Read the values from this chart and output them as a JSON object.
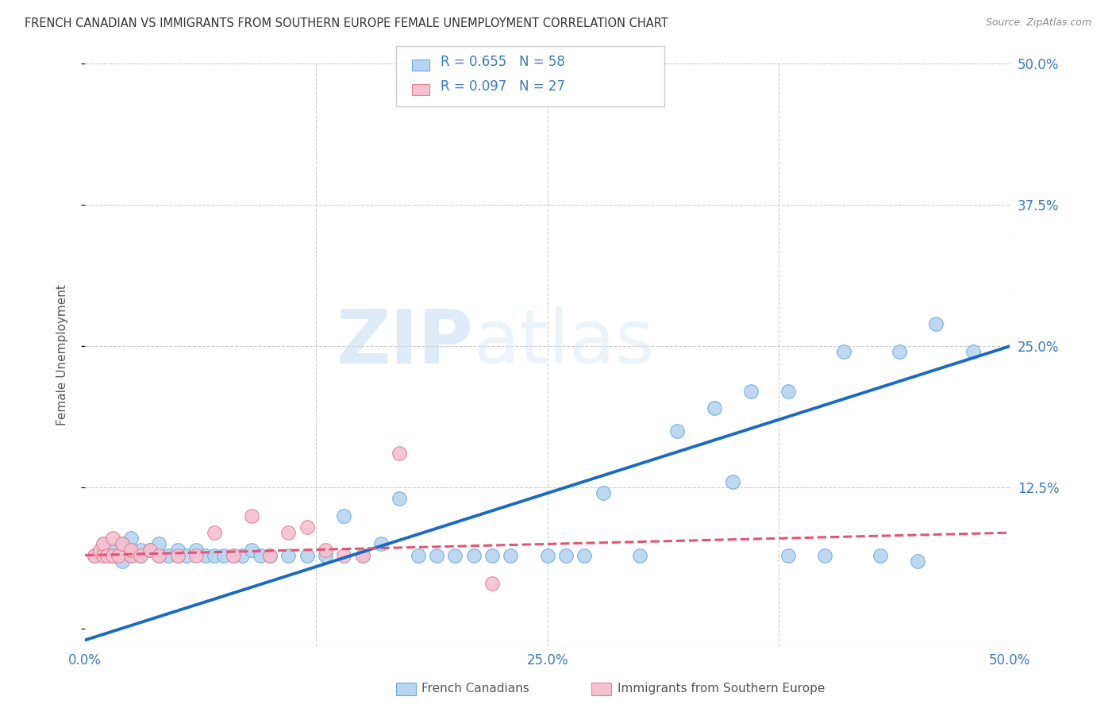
{
  "title": "FRENCH CANADIAN VS IMMIGRANTS FROM SOUTHERN EUROPE FEMALE UNEMPLOYMENT CORRELATION CHART",
  "source": "Source: ZipAtlas.com",
  "ylabel": "Female Unemployment",
  "x_min": 0.0,
  "x_max": 0.5,
  "y_min": -0.015,
  "y_max": 0.5,
  "blue_R": "0.655",
  "blue_N": "58",
  "pink_R": "0.097",
  "pink_N": "27",
  "blue_color": "#b8d4f0",
  "blue_edge_color": "#6aaae0",
  "blue_line_color": "#1a6bbf",
  "pink_color": "#f5c0d0",
  "pink_edge_color": "#e08090",
  "pink_line_color": "#e05575",
  "legend_label1": "French Canadians",
  "legend_label2": "Immigrants from Southern Europe",
  "watermark_zip": "ZIP",
  "watermark_atlas": "atlas",
  "blue_line_x0": 0.0,
  "blue_line_y0": -0.01,
  "blue_line_x1": 0.5,
  "blue_line_y1": 0.25,
  "pink_line_x0": 0.0,
  "pink_line_y0": 0.065,
  "pink_line_x1": 0.5,
  "pink_line_y1": 0.085,
  "blue_x": [
    0.005,
    0.01,
    0.01,
    0.015,
    0.015,
    0.02,
    0.02,
    0.025,
    0.025,
    0.03,
    0.03,
    0.035,
    0.04,
    0.04,
    0.045,
    0.05,
    0.05,
    0.055,
    0.06,
    0.065,
    0.07,
    0.075,
    0.08,
    0.085,
    0.09,
    0.095,
    0.1,
    0.11,
    0.12,
    0.13,
    0.14,
    0.15,
    0.16,
    0.17,
    0.18,
    0.19,
    0.2,
    0.21,
    0.22,
    0.23,
    0.25,
    0.26,
    0.27,
    0.28,
    0.3,
    0.32,
    0.34,
    0.35,
    0.36,
    0.38,
    0.38,
    0.4,
    0.41,
    0.43,
    0.44,
    0.45,
    0.46,
    0.48
  ],
  "blue_y": [
    0.065,
    0.07,
    0.075,
    0.065,
    0.07,
    0.06,
    0.075,
    0.065,
    0.08,
    0.065,
    0.07,
    0.07,
    0.065,
    0.075,
    0.065,
    0.065,
    0.07,
    0.065,
    0.07,
    0.065,
    0.065,
    0.065,
    0.065,
    0.065,
    0.07,
    0.065,
    0.065,
    0.065,
    0.065,
    0.065,
    0.1,
    0.065,
    0.075,
    0.115,
    0.065,
    0.065,
    0.065,
    0.065,
    0.065,
    0.065,
    0.065,
    0.065,
    0.065,
    0.12,
    0.065,
    0.175,
    0.195,
    0.13,
    0.21,
    0.21,
    0.065,
    0.065,
    0.245,
    0.065,
    0.245,
    0.06,
    0.27,
    0.245
  ],
  "pink_x": [
    0.005,
    0.008,
    0.01,
    0.01,
    0.012,
    0.015,
    0.015,
    0.018,
    0.02,
    0.025,
    0.025,
    0.03,
    0.035,
    0.04,
    0.05,
    0.06,
    0.07,
    0.08,
    0.09,
    0.1,
    0.11,
    0.12,
    0.13,
    0.14,
    0.15,
    0.17,
    0.22
  ],
  "pink_y": [
    0.065,
    0.07,
    0.065,
    0.075,
    0.065,
    0.065,
    0.08,
    0.065,
    0.075,
    0.065,
    0.07,
    0.065,
    0.07,
    0.065,
    0.065,
    0.065,
    0.085,
    0.065,
    0.1,
    0.065,
    0.085,
    0.09,
    0.07,
    0.065,
    0.065,
    0.155,
    0.04
  ]
}
